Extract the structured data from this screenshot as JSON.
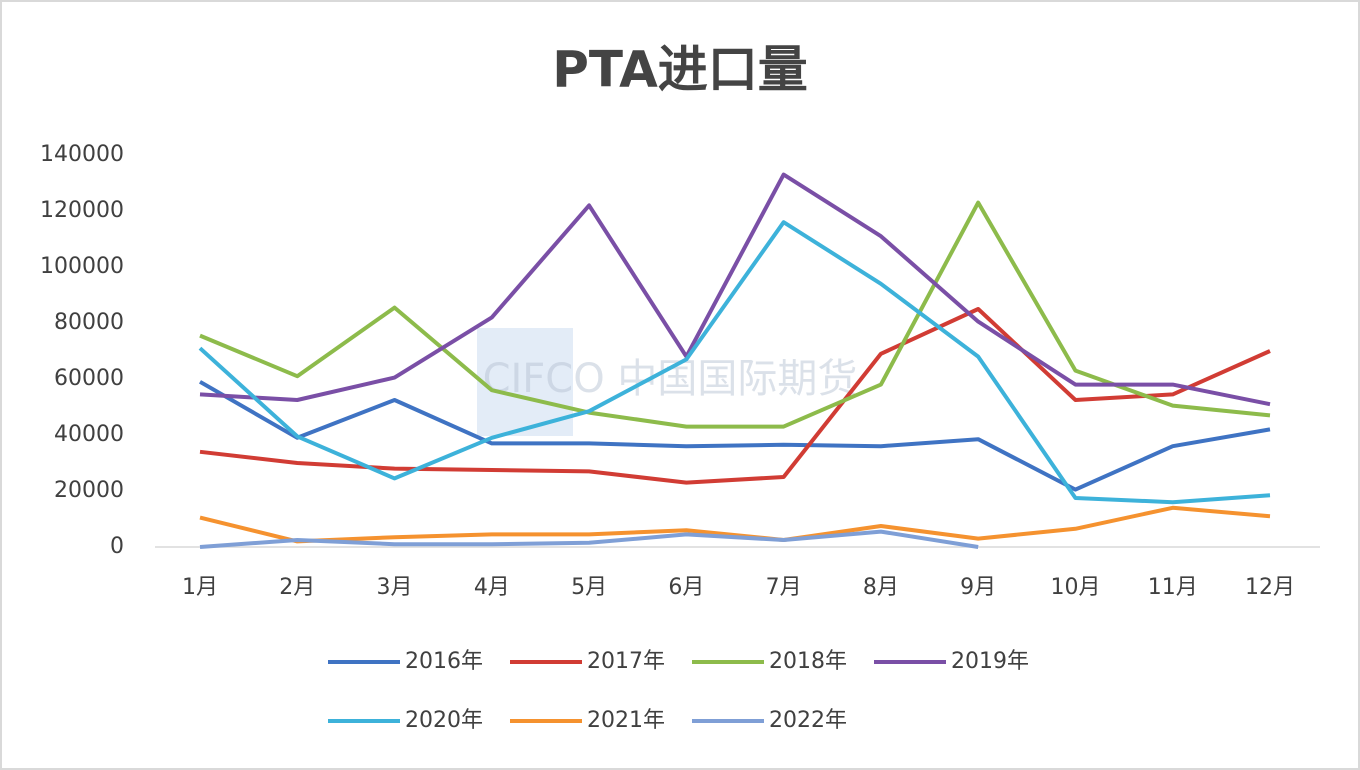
{
  "chart_data": {
    "type": "line",
    "title": "PTA进口量",
    "watermark": "CIFCO 中国国际期货",
    "categories": [
      "1月",
      "2月",
      "3月",
      "4月",
      "5月",
      "6月",
      "7月",
      "8月",
      "9月",
      "10月",
      "11月",
      "12月"
    ],
    "ylim": [
      0,
      140000
    ],
    "yticks": [
      0,
      20000,
      40000,
      60000,
      80000,
      100000,
      120000,
      140000
    ],
    "grid": false,
    "legend": "bottom",
    "series": [
      {
        "name": "2016年",
        "color": "#3f73c3",
        "values": [
          59000,
          39000,
          52500,
          37000,
          37000,
          36000,
          36500,
          36000,
          38500,
          20500,
          36000,
          42000
        ]
      },
      {
        "name": "2017年",
        "color": "#d13c34",
        "values": [
          34000,
          30000,
          28000,
          27500,
          27000,
          23000,
          25000,
          69000,
          85000,
          52500,
          54500,
          70000
        ]
      },
      {
        "name": "2018年",
        "color": "#8dbb4b",
        "values": [
          75500,
          61000,
          85500,
          56000,
          48000,
          43000,
          43000,
          58000,
          123000,
          63000,
          50500,
          47000
        ]
      },
      {
        "name": "2019年",
        "color": "#7a4fa6",
        "values": [
          54500,
          52500,
          60500,
          82000,
          122000,
          68000,
          133000,
          111000,
          80500,
          58000,
          58000,
          51000
        ]
      },
      {
        "name": "2020年",
        "color": "#3db2da",
        "values": [
          71000,
          39500,
          24500,
          39000,
          48500,
          67000,
          116000,
          94000,
          68000,
          17500,
          16000,
          18500
        ]
      },
      {
        "name": "2021年",
        "color": "#f5922f",
        "values": [
          10500,
          2000,
          3500,
          4500,
          4500,
          6000,
          2500,
          7500,
          3000,
          6500,
          14000,
          11000
        ]
      },
      {
        "name": "2022年",
        "color": "#7f9fd6",
        "values": [
          0,
          2500,
          1000,
          1000,
          1500,
          4500,
          2500,
          5500,
          0,
          null,
          null,
          null
        ]
      }
    ]
  }
}
